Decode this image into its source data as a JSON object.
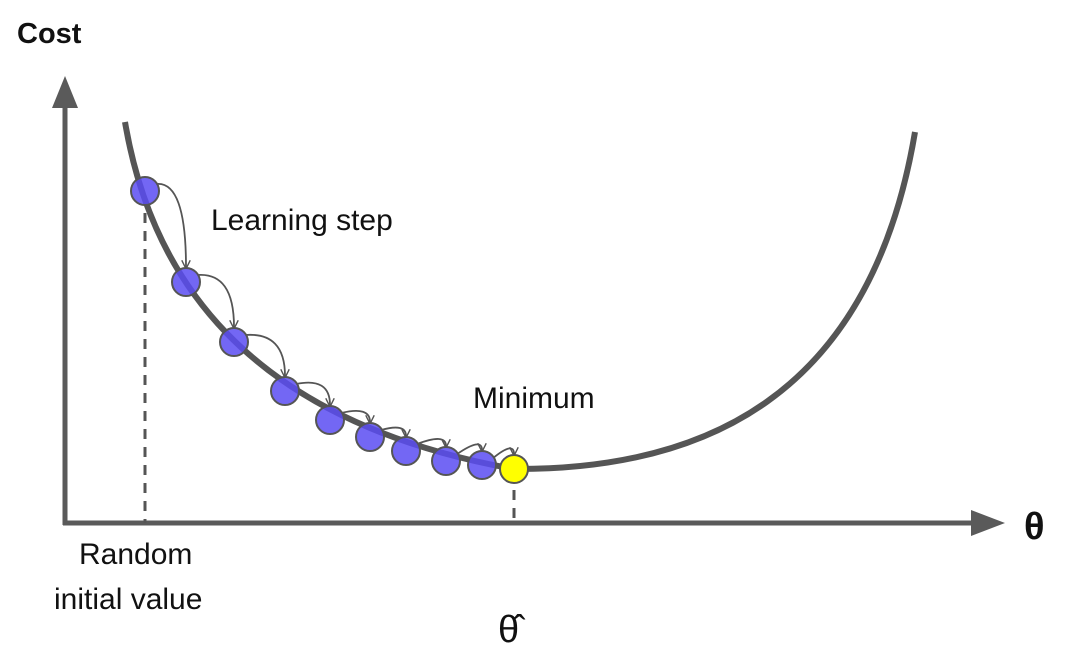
{
  "labels": {
    "y_axis": "Cost",
    "x_axis": "θ",
    "learning_step": "Learning step",
    "minimum": "Minimum",
    "random_line1": "Random",
    "random_line2": "initial value",
    "theta_hat": "θ̂"
  },
  "colors": {
    "axis": "#5a5a5a",
    "curve": "#555555",
    "step_point": "#5b4cf2",
    "minimum_point": "#ffff00"
  },
  "step_count": 9
}
